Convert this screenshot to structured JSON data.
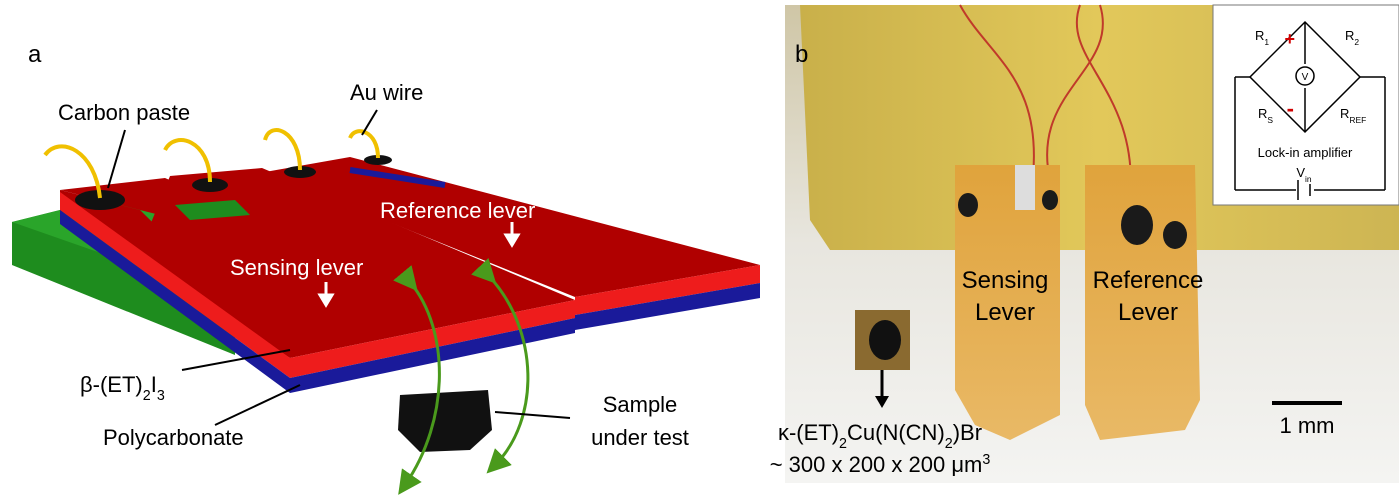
{
  "panel_a": {
    "label": "a",
    "carbon_paste": "Carbon paste",
    "au_wire": "Au wire",
    "reference_lever": "Reference lever",
    "sensing_lever": "Sensing lever",
    "beta": [
      "β-(ET)",
      "2",
      "I",
      "3"
    ],
    "polycarbonate": "Polycarbonate",
    "sample_line1": "Sample",
    "sample_line2": "under test"
  },
  "panel_b": {
    "label": "b",
    "sensing_line1": "Sensing",
    "sensing_line2": "Lever",
    "reference_line1": "Reference",
    "reference_line2": "Lever",
    "compound": [
      "κ-(ET)",
      "2",
      "Cu(N(CN)",
      "2",
      ")Br"
    ],
    "size": [
      "~ 300 x 200 x 200 μm",
      "3"
    ],
    "scale": "1 mm",
    "circuit": {
      "r1": [
        "R",
        "1"
      ],
      "r2": [
        "R",
        "2"
      ],
      "rs": [
        "R",
        "S"
      ],
      "rref": [
        "R",
        "REF"
      ],
      "plus": "+",
      "minus": "-",
      "v": "V",
      "amp": "Lock-in amplifier",
      "vin": [
        "V",
        "in"
      ]
    }
  }
}
